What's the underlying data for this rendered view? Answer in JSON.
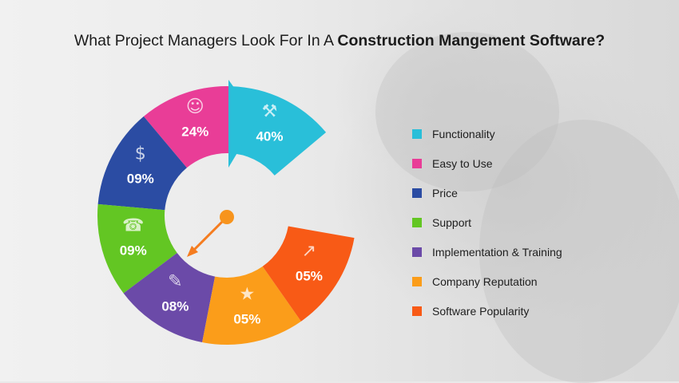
{
  "title": {
    "normal": "What Project Managers Look For In A ",
    "bold": "Construction Mangement Software?"
  },
  "chart_data": {
    "type": "pie",
    "categories": [
      "Functionality",
      "Easy to Use",
      "Price",
      "Support",
      "Implementation & Training",
      "Company Reputation",
      "Software Popularity"
    ],
    "values": [
      40,
      24,
      9,
      9,
      8,
      5,
      5
    ],
    "value_labels": [
      "40%",
      "24%",
      "09%",
      "09%",
      "08%",
      "05%",
      "05%"
    ],
    "colors": [
      "#29bfd9",
      "#e93d97",
      "#2b4ca3",
      "#63c623",
      "#6b4aa8",
      "#fb9d1a",
      "#f85a16"
    ],
    "icons": [
      "tools-icon",
      "worker-icon",
      "piggy-bank-icon",
      "headset-icon",
      "training-icon",
      "star-badge-icon",
      "growth-chart-icon"
    ],
    "legend_placement": "right"
  }
}
